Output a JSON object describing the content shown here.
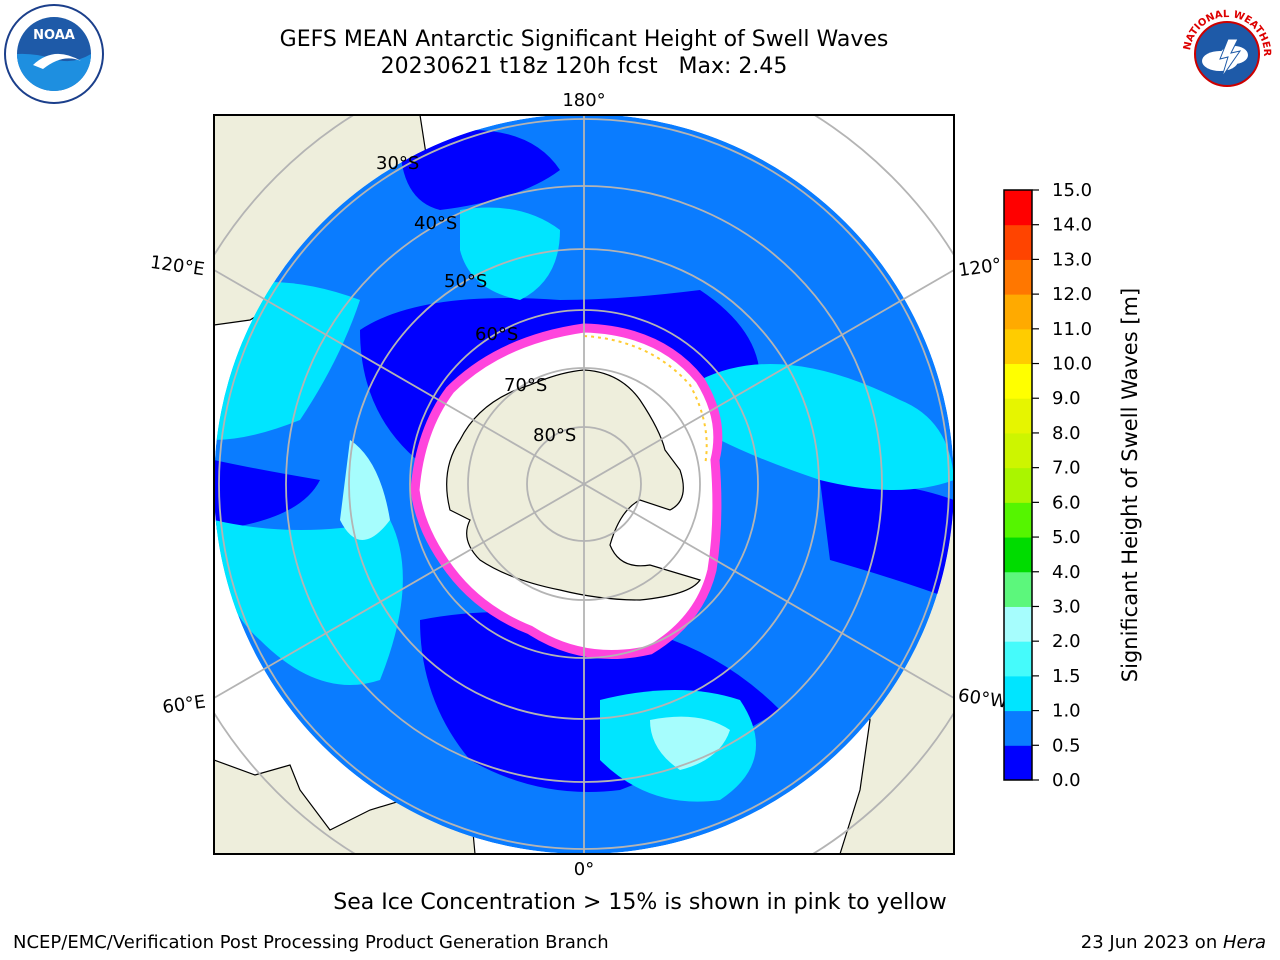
{
  "header": {
    "title_line1": "GEFS MEAN Antarctic Significant Height of Swell Waves",
    "title_line2": "20230621 t18z 120h fcst   Max: 2.45"
  },
  "logos": {
    "left": {
      "icon": "noaa-logo-icon",
      "text": "NOAA"
    },
    "right": {
      "icon": "national-weather-service-logo-icon",
      "text": "NATIONAL WEATHER SERVICE"
    }
  },
  "map": {
    "projection": "south-polar-stereographic",
    "longitude_labels": {
      "top": "180°",
      "bottom": "0°",
      "left_upper": "120°E",
      "left_lower": "60°E",
      "right_upper": "120°",
      "right_lower": "60°W"
    },
    "latitude_labels": [
      "30°S",
      "40°S",
      "50°S",
      "60°S",
      "70°S",
      "80°S"
    ],
    "colors": {
      "land": "#eeeedc",
      "ocean_mid": "#0a7cff",
      "ice": "#ffffff",
      "ice_edge": "#ff44dd",
      "grid": "#b4b4b4"
    }
  },
  "colorbar": {
    "title": "Significant Height of Swell Waves [m]",
    "ticks": [
      "0.0",
      "0.5",
      "1.0",
      "1.5",
      "2.0",
      "3.0",
      "4.0",
      "5.0",
      "6.0",
      "7.0",
      "8.0",
      "9.0",
      "10.0",
      "11.0",
      "12.0",
      "13.0",
      "14.0",
      "15.0"
    ],
    "colors": [
      "#0000ff",
      "#0a7cff",
      "#00e5ff",
      "#45fbfb",
      "#a6fdfd",
      "#5cf77c",
      "#00dc00",
      "#55f500",
      "#aaf500",
      "#cdf500",
      "#e6f500",
      "#ffff00",
      "#ffcc00",
      "#ffaa00",
      "#ff7700",
      "#ff4400",
      "#ff0000"
    ]
  },
  "notes": {
    "ice": "Sea Ice Concentration > 15% is shown in pink to yellow"
  },
  "footer": {
    "left": "NCEP/EMC/Verification Post Processing Product Generation Branch",
    "right_date": "23 Jun 2023 on ",
    "right_host": "Hera"
  }
}
